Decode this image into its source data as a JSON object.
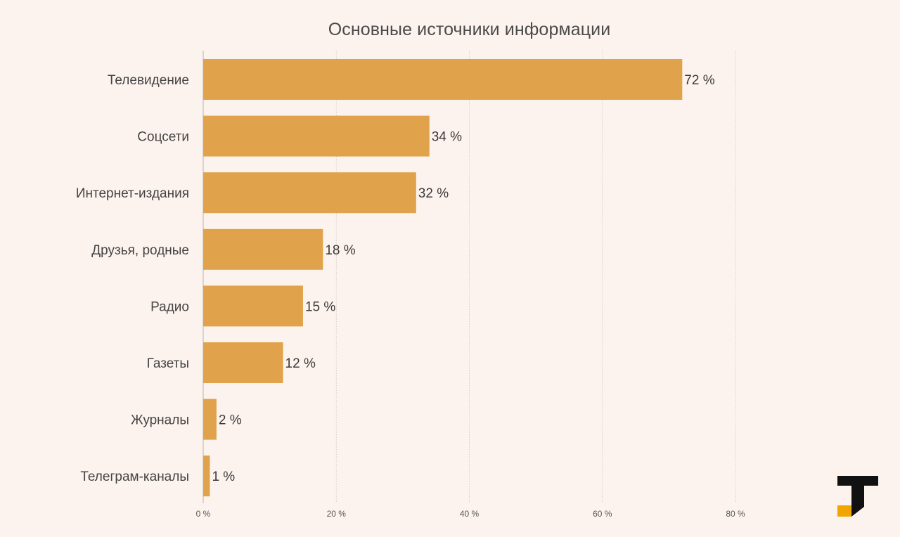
{
  "chart_data": {
    "type": "bar",
    "orientation": "horizontal",
    "title": "Основные источники информации",
    "categories": [
      "Телевидение",
      "Соцсети",
      "Интернет-издания",
      "Друзья, родные",
      "Радио",
      "Газеты",
      "Журналы",
      "Телеграм-каналы"
    ],
    "values": [
      72,
      34,
      32,
      18,
      15,
      12,
      2,
      1
    ],
    "value_labels": [
      "72 %",
      "34 %",
      "32 %",
      "18 %",
      "15 %",
      "12 %",
      "2 %",
      "1 %"
    ],
    "xlim": [
      0,
      80
    ],
    "x_ticks": [
      0,
      20,
      40,
      60,
      80
    ],
    "x_tick_labels": [
      "0 %",
      "20 %",
      "40 %",
      "60 %",
      "80 %"
    ],
    "grid": "vertical, dotted",
    "legend": "none",
    "bar_color": "#e0a24a",
    "grid_color": "#c9c2bd"
  },
  "logo": {
    "icon": "t-logo-icon",
    "dark_color": "#111111",
    "accent_color": "#f0a500"
  }
}
